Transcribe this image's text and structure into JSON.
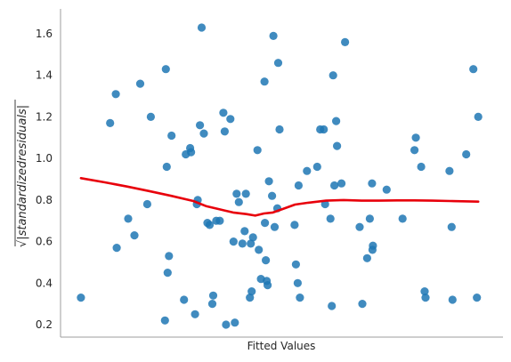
{
  "chart_data": {
    "type": "scatter",
    "title": "",
    "xlabel": "Fitted Values",
    "ylabel": "√|standardized residuals|",
    "ylabel_radicand": "|standardizedresiduals|",
    "ylabel_radical": "√",
    "xlim": [
      0,
      100
    ],
    "ylim": [
      0.14,
      1.72
    ],
    "y_ticks": [
      0.2,
      0.4,
      0.6,
      0.8,
      1.0,
      1.2,
      1.4,
      1.6
    ],
    "y_tick_labels": [
      "0.2",
      "0.4",
      "0.6",
      "0.8",
      "1.0",
      "1.2",
      "1.4",
      "1.6"
    ],
    "x_ticks_shown": false,
    "grid": false,
    "legend": "none",
    "colors": {
      "points": "#1f77b4",
      "trend": "#e8000b",
      "axes": "#9e9e9e",
      "text": "#262626"
    },
    "series": [
      {
        "type": "scatter",
        "points": [
          {
            "x": 4.6,
            "y": 0.33
          },
          {
            "x": 11.2,
            "y": 1.17
          },
          {
            "x": 12.5,
            "y": 1.31
          },
          {
            "x": 12.7,
            "y": 0.57
          },
          {
            "x": 15.3,
            "y": 0.71
          },
          {
            "x": 16.7,
            "y": 0.63
          },
          {
            "x": 18.0,
            "y": 1.36
          },
          {
            "x": 19.6,
            "y": 0.78
          },
          {
            "x": 20.4,
            "y": 1.2
          },
          {
            "x": 23.6,
            "y": 0.22
          },
          {
            "x": 23.8,
            "y": 1.43
          },
          {
            "x": 24.0,
            "y": 0.96
          },
          {
            "x": 24.2,
            "y": 0.45
          },
          {
            "x": 24.5,
            "y": 0.53
          },
          {
            "x": 25.1,
            "y": 1.11
          },
          {
            "x": 27.9,
            "y": 0.32
          },
          {
            "x": 28.3,
            "y": 1.02
          },
          {
            "x": 29.3,
            "y": 1.05
          },
          {
            "x": 29.5,
            "y": 1.03
          },
          {
            "x": 30.4,
            "y": 0.25
          },
          {
            "x": 30.8,
            "y": 0.78
          },
          {
            "x": 31.0,
            "y": 0.8
          },
          {
            "x": 31.5,
            "y": 1.16
          },
          {
            "x": 31.9,
            "y": 1.63
          },
          {
            "x": 32.4,
            "y": 1.12
          },
          {
            "x": 33.2,
            "y": 0.69
          },
          {
            "x": 33.7,
            "y": 0.68
          },
          {
            "x": 34.3,
            "y": 0.3
          },
          {
            "x": 34.5,
            "y": 0.34
          },
          {
            "x": 35.2,
            "y": 0.7
          },
          {
            "x": 36.0,
            "y": 0.7
          },
          {
            "x": 36.8,
            "y": 1.22
          },
          {
            "x": 37.1,
            "y": 1.13
          },
          {
            "x": 37.4,
            "y": 0.2
          },
          {
            "x": 38.4,
            "y": 1.19
          },
          {
            "x": 39.1,
            "y": 0.6
          },
          {
            "x": 39.4,
            "y": 0.21
          },
          {
            "x": 39.8,
            "y": 0.83
          },
          {
            "x": 40.3,
            "y": 0.79
          },
          {
            "x": 41.1,
            "y": 0.59
          },
          {
            "x": 41.6,
            "y": 0.65
          },
          {
            "x": 41.9,
            "y": 0.83
          },
          {
            "x": 42.8,
            "y": 0.33
          },
          {
            "x": 43.0,
            "y": 0.59
          },
          {
            "x": 43.2,
            "y": 0.36
          },
          {
            "x": 43.5,
            "y": 0.62
          },
          {
            "x": 44.5,
            "y": 1.04
          },
          {
            "x": 44.8,
            "y": 0.56
          },
          {
            "x": 45.3,
            "y": 0.42
          },
          {
            "x": 46.1,
            "y": 1.37
          },
          {
            "x": 46.2,
            "y": 0.69
          },
          {
            "x": 46.4,
            "y": 0.51
          },
          {
            "x": 46.6,
            "y": 0.41
          },
          {
            "x": 46.8,
            "y": 0.39
          },
          {
            "x": 47.1,
            "y": 0.89
          },
          {
            "x": 47.8,
            "y": 0.82
          },
          {
            "x": 48.1,
            "y": 1.59
          },
          {
            "x": 48.4,
            "y": 0.67
          },
          {
            "x": 49.0,
            "y": 0.76
          },
          {
            "x": 49.2,
            "y": 1.46
          },
          {
            "x": 49.5,
            "y": 1.14
          },
          {
            "x": 52.9,
            "y": 0.68
          },
          {
            "x": 53.2,
            "y": 0.49
          },
          {
            "x": 53.6,
            "y": 0.4
          },
          {
            "x": 53.8,
            "y": 0.87
          },
          {
            "x": 54.1,
            "y": 0.33
          },
          {
            "x": 55.7,
            "y": 0.94
          },
          {
            "x": 58.0,
            "y": 0.96
          },
          {
            "x": 58.7,
            "y": 1.14
          },
          {
            "x": 59.5,
            "y": 1.14
          },
          {
            "x": 59.8,
            "y": 0.78
          },
          {
            "x": 61.0,
            "y": 0.71
          },
          {
            "x": 61.3,
            "y": 0.29
          },
          {
            "x": 61.6,
            "y": 1.4
          },
          {
            "x": 61.9,
            "y": 0.87
          },
          {
            "x": 62.3,
            "y": 1.18
          },
          {
            "x": 62.5,
            "y": 1.06
          },
          {
            "x": 63.5,
            "y": 0.88
          },
          {
            "x": 64.3,
            "y": 1.56
          },
          {
            "x": 67.6,
            "y": 0.67
          },
          {
            "x": 68.2,
            "y": 0.3
          },
          {
            "x": 69.3,
            "y": 0.52
          },
          {
            "x": 69.9,
            "y": 0.71
          },
          {
            "x": 70.4,
            "y": 0.88
          },
          {
            "x": 70.5,
            "y": 0.56
          },
          {
            "x": 70.6,
            "y": 0.58
          },
          {
            "x": 73.7,
            "y": 0.85
          },
          {
            "x": 77.3,
            "y": 0.71
          },
          {
            "x": 80.0,
            "y": 1.04
          },
          {
            "x": 80.3,
            "y": 1.1
          },
          {
            "x": 81.5,
            "y": 0.96
          },
          {
            "x": 82.3,
            "y": 0.36
          },
          {
            "x": 82.5,
            "y": 0.33
          },
          {
            "x": 87.9,
            "y": 0.94
          },
          {
            "x": 88.4,
            "y": 0.67
          },
          {
            "x": 88.6,
            "y": 0.32
          },
          {
            "x": 91.7,
            "y": 1.02
          },
          {
            "x": 93.3,
            "y": 1.43
          },
          {
            "x": 94.1,
            "y": 0.33
          },
          {
            "x": 94.4,
            "y": 1.2
          }
        ]
      },
      {
        "type": "line",
        "points": [
          {
            "x": 4.6,
            "y": 0.905
          },
          {
            "x": 10,
            "y": 0.885
          },
          {
            "x": 15,
            "y": 0.865
          },
          {
            "x": 20,
            "y": 0.843
          },
          {
            "x": 25,
            "y": 0.82
          },
          {
            "x": 30,
            "y": 0.795
          },
          {
            "x": 33,
            "y": 0.77
          },
          {
            "x": 36,
            "y": 0.755
          },
          {
            "x": 39,
            "y": 0.74
          },
          {
            "x": 42,
            "y": 0.732
          },
          {
            "x": 44,
            "y": 0.725
          },
          {
            "x": 46,
            "y": 0.735
          },
          {
            "x": 48,
            "y": 0.74
          },
          {
            "x": 50,
            "y": 0.755
          },
          {
            "x": 53,
            "y": 0.778
          },
          {
            "x": 56,
            "y": 0.787
          },
          {
            "x": 60,
            "y": 0.797
          },
          {
            "x": 64,
            "y": 0.8
          },
          {
            "x": 68,
            "y": 0.797
          },
          {
            "x": 72,
            "y": 0.797
          },
          {
            "x": 76,
            "y": 0.798
          },
          {
            "x": 80,
            "y": 0.798
          },
          {
            "x": 84,
            "y": 0.797
          },
          {
            "x": 88,
            "y": 0.795
          },
          {
            "x": 94.4,
            "y": 0.792
          }
        ]
      }
    ]
  }
}
